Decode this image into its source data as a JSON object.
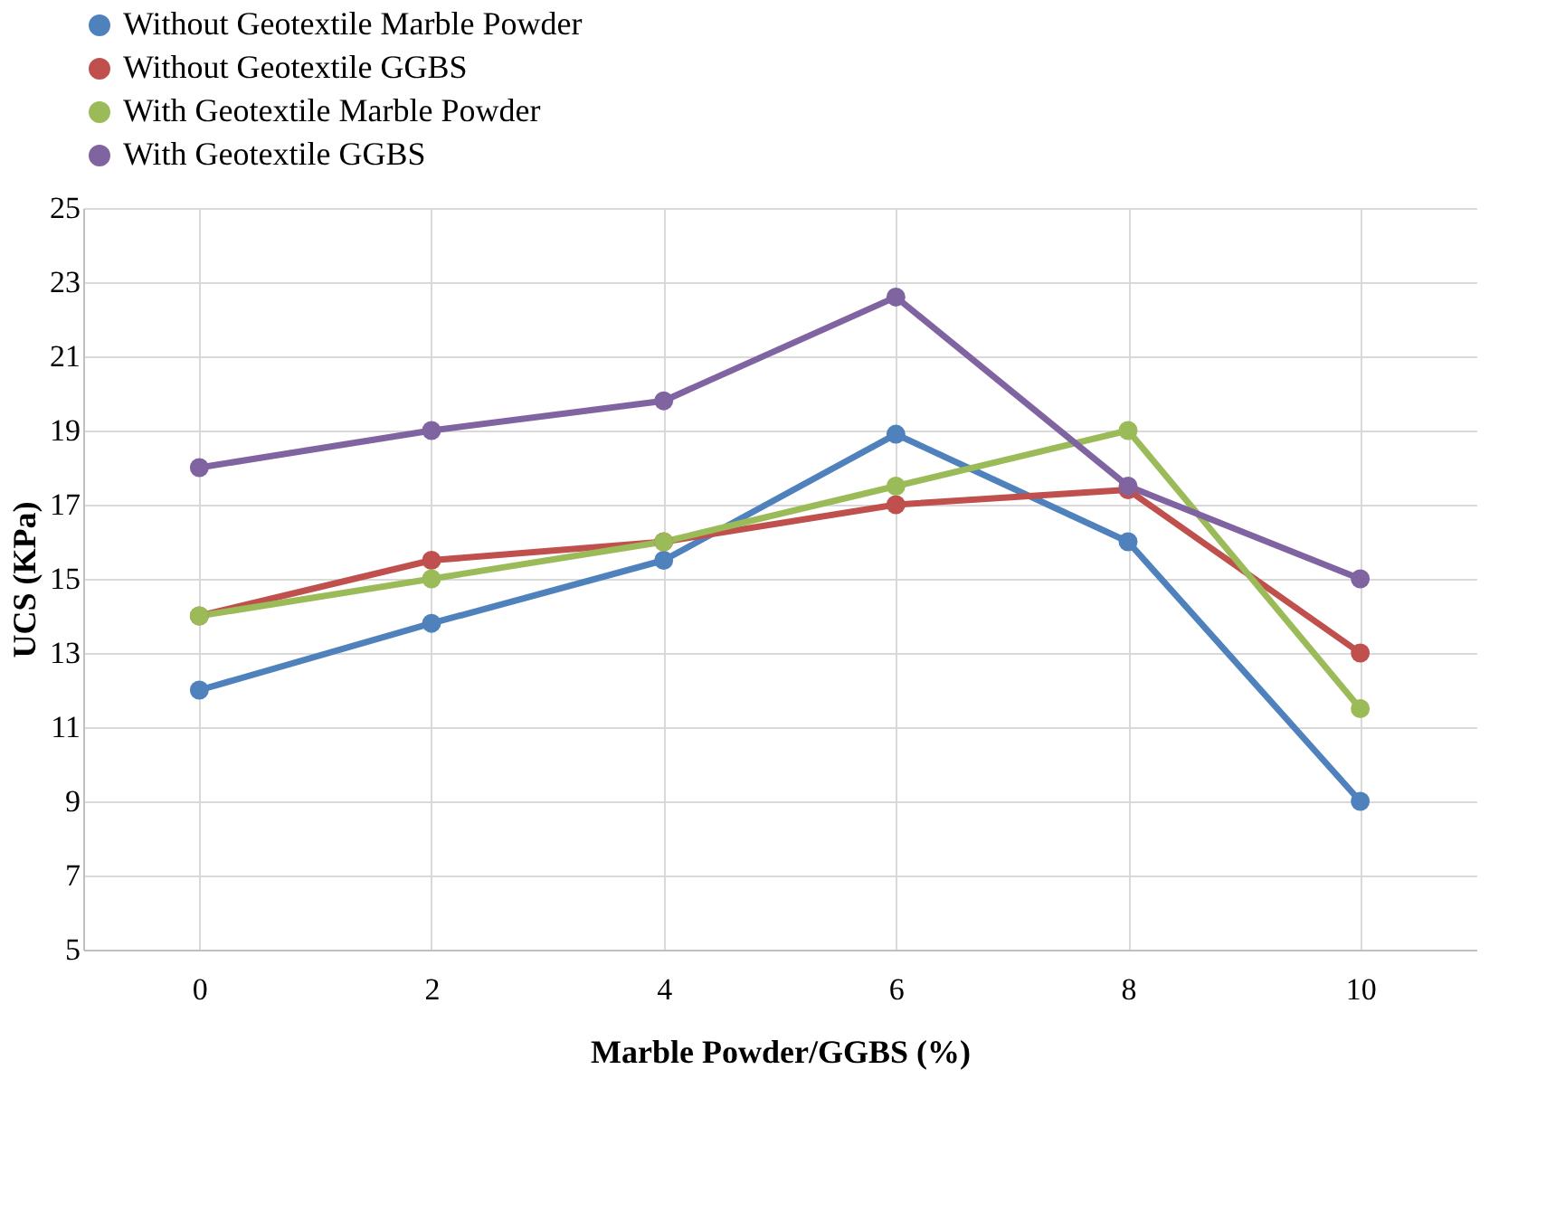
{
  "chart_data": {
    "type": "line",
    "xlabel": "Marble Powder/GGBS (%)",
    "ylabel": "UCS (KPa)",
    "categories": [
      "0",
      "2",
      "4",
      "6",
      "8",
      "10"
    ],
    "series": [
      {
        "name": "Without Geotextile Marble Powder",
        "color": "#4f81bd",
        "values": [
          12,
          13.8,
          15.5,
          18.9,
          16,
          9
        ]
      },
      {
        "name": "Without Geotextile GGBS",
        "color": "#c0504d",
        "values": [
          14,
          15.5,
          16,
          17,
          17.4,
          13
        ]
      },
      {
        "name": "With Geotextile Marble Powder",
        "color": "#9bbb59",
        "values": [
          14,
          15,
          16,
          17.5,
          19,
          11.5
        ]
      },
      {
        "name": "With Geotextile GGBS",
        "color": "#8064a2",
        "values": [
          18,
          19,
          19.8,
          22.6,
          17.5,
          15
        ]
      }
    ],
    "ylim": [
      5,
      25
    ],
    "yticks": [
      5,
      7,
      9,
      11,
      13,
      15,
      17,
      19,
      21,
      23,
      25
    ],
    "grid": true,
    "legend": "top",
    "marker": "circle",
    "line_style": "solid"
  }
}
